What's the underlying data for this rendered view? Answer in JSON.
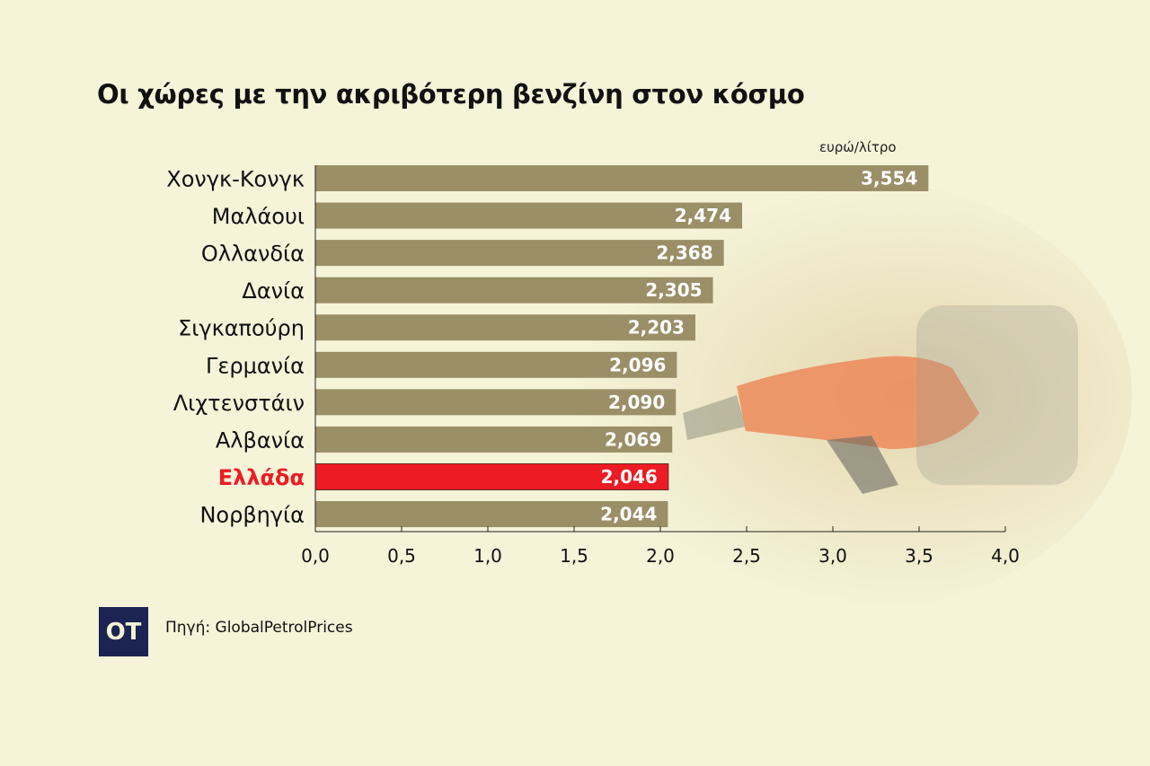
{
  "chart_data": {
    "type": "bar",
    "orientation": "horizontal",
    "title": "Οι χώρες με την ακριβότερη βενζίνη στον κόσμο",
    "unit_label": "ευρώ/λίτρο",
    "categories": [
      "Χονγκ-Κονγκ",
      "Μαλάουι",
      "Ολλανδία",
      "Δανία",
      "Σιγκαπούρη",
      "Γερμανία",
      "Λιχτενστάιν",
      "Αλβανία",
      "Ελλάδα",
      "Νορβηγία"
    ],
    "values": [
      3.554,
      2.474,
      2.368,
      2.305,
      2.203,
      2.096,
      2.09,
      2.069,
      2.046,
      2.044
    ],
    "data_labels": [
      "3,554",
      "2,474",
      "2,368",
      "2,305",
      "2,203",
      "2,096",
      "2,090",
      "2,069",
      "2,046",
      "2,044"
    ],
    "highlight": "Ελλάδα",
    "xlim": [
      0,
      4
    ],
    "x_ticks": [
      0,
      0.5,
      1,
      1.5,
      2,
      2.5,
      3,
      3.5,
      4
    ],
    "x_tick_labels": [
      "0,0",
      "0,5",
      "1,0",
      "1,5",
      "2,0",
      "2,5",
      "3,0",
      "3,5",
      "4,0"
    ],
    "grid": false,
    "colors": {
      "bar": "#9b8f68",
      "highlight": "#ed1c24",
      "background": "#f5f3d8"
    }
  },
  "footer": {
    "logo_text": "OT",
    "source": "Πηγή: GlobalPetrolPrices"
  }
}
